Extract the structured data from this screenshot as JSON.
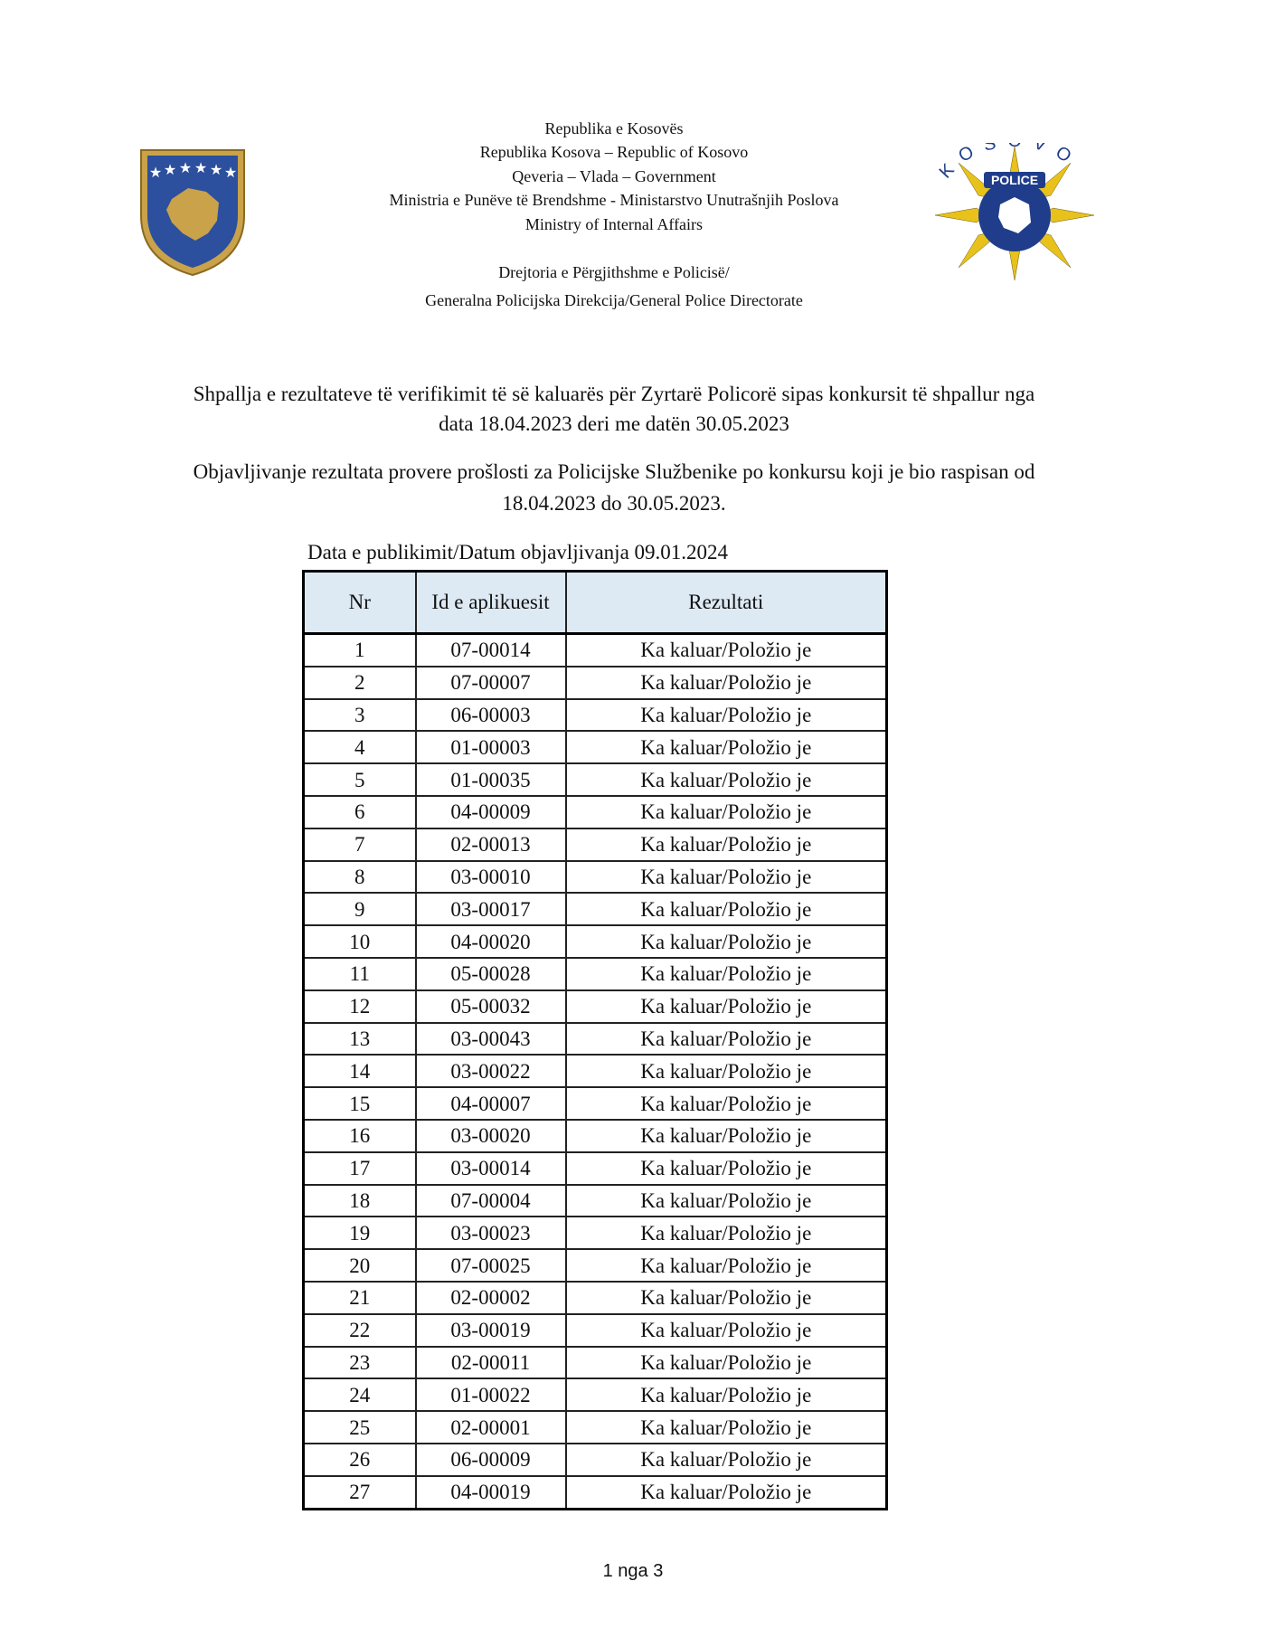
{
  "header": {
    "lines": [
      "Republika e Kosovës",
      "Republika Kosova – Republic of Kosovo",
      "Qeveria – Vlada – Government",
      "Ministria e Punëve të Brendshme - Ministarstvo Unutrašnjih Poslova",
      "Ministry of Internal Affairs",
      "Drejtoria e Përgjithshme e Policisë/",
      "Generalna Policijska Direkcija/General Police Directorate"
    ]
  },
  "police_logo": {
    "arc_text": "KOSOVO",
    "badge": "POLICE"
  },
  "announcement": {
    "albanian": [
      "Shpallja e rezultateve të verifikimit të së kaluarës për Zyrtarë Policorë sipas konkursit të shpallur nga",
      "data 18.04.2023 deri me datën 30.05.2023"
    ],
    "serbian": [
      "Objavljivanje rezultata provere prošlosti za Policijske Službenike  po konkursu koji je bio raspisan od",
      "18.04.2023 do 30.05.2023."
    ]
  },
  "publication_date": "Data e publikimit/Datum  objavljivanja 09.01.2024",
  "table": {
    "headers": [
      "Nr",
      "Id e aplikuesit",
      "Rezultati"
    ],
    "rows": [
      [
        1,
        "07-00014",
        "Ka kaluar/Položio je"
      ],
      [
        2,
        "07-00007",
        "Ka kaluar/Položio je"
      ],
      [
        3,
        "06-00003",
        "Ka kaluar/Položio je"
      ],
      [
        4,
        "01-00003",
        "Ka kaluar/Položio je"
      ],
      [
        5,
        "01-00035",
        "Ka kaluar/Položio je"
      ],
      [
        6,
        "04-00009",
        "Ka kaluar/Položio je"
      ],
      [
        7,
        "02-00013",
        "Ka kaluar/Položio je"
      ],
      [
        8,
        "03-00010",
        "Ka kaluar/Položio je"
      ],
      [
        9,
        "03-00017",
        "Ka kaluar/Položio je"
      ],
      [
        10,
        "04-00020",
        "Ka kaluar/Položio je"
      ],
      [
        11,
        "05-00028",
        "Ka kaluar/Položio je"
      ],
      [
        12,
        "05-00032",
        "Ka kaluar/Položio je"
      ],
      [
        13,
        "03-00043",
        "Ka kaluar/Položio je"
      ],
      [
        14,
        "03-00022",
        "Ka kaluar/Položio je"
      ],
      [
        15,
        "04-00007",
        "Ka kaluar/Položio je"
      ],
      [
        16,
        "03-00020",
        "Ka kaluar/Položio je"
      ],
      [
        17,
        "03-00014",
        "Ka kaluar/Položio je"
      ],
      [
        18,
        "07-00004",
        "Ka kaluar/Položio je"
      ],
      [
        19,
        "03-00023",
        "Ka kaluar/Položio je"
      ],
      [
        20,
        "07-00025",
        "Ka kaluar/Položio je"
      ],
      [
        21,
        "02-00002",
        "Ka kaluar/Položio je"
      ],
      [
        22,
        "03-00019",
        "Ka kaluar/Položio je"
      ],
      [
        23,
        "02-00011",
        "Ka kaluar/Položio je"
      ],
      [
        24,
        "01-00022",
        "Ka kaluar/Položio je"
      ],
      [
        25,
        "02-00001",
        "Ka kaluar/Položio je"
      ],
      [
        26,
        "06-00009",
        "Ka kaluar/Položio je"
      ],
      [
        27,
        "04-00019",
        "Ka kaluar/Položio je"
      ]
    ]
  },
  "footer": {
    "page": "1 nga 3"
  }
}
